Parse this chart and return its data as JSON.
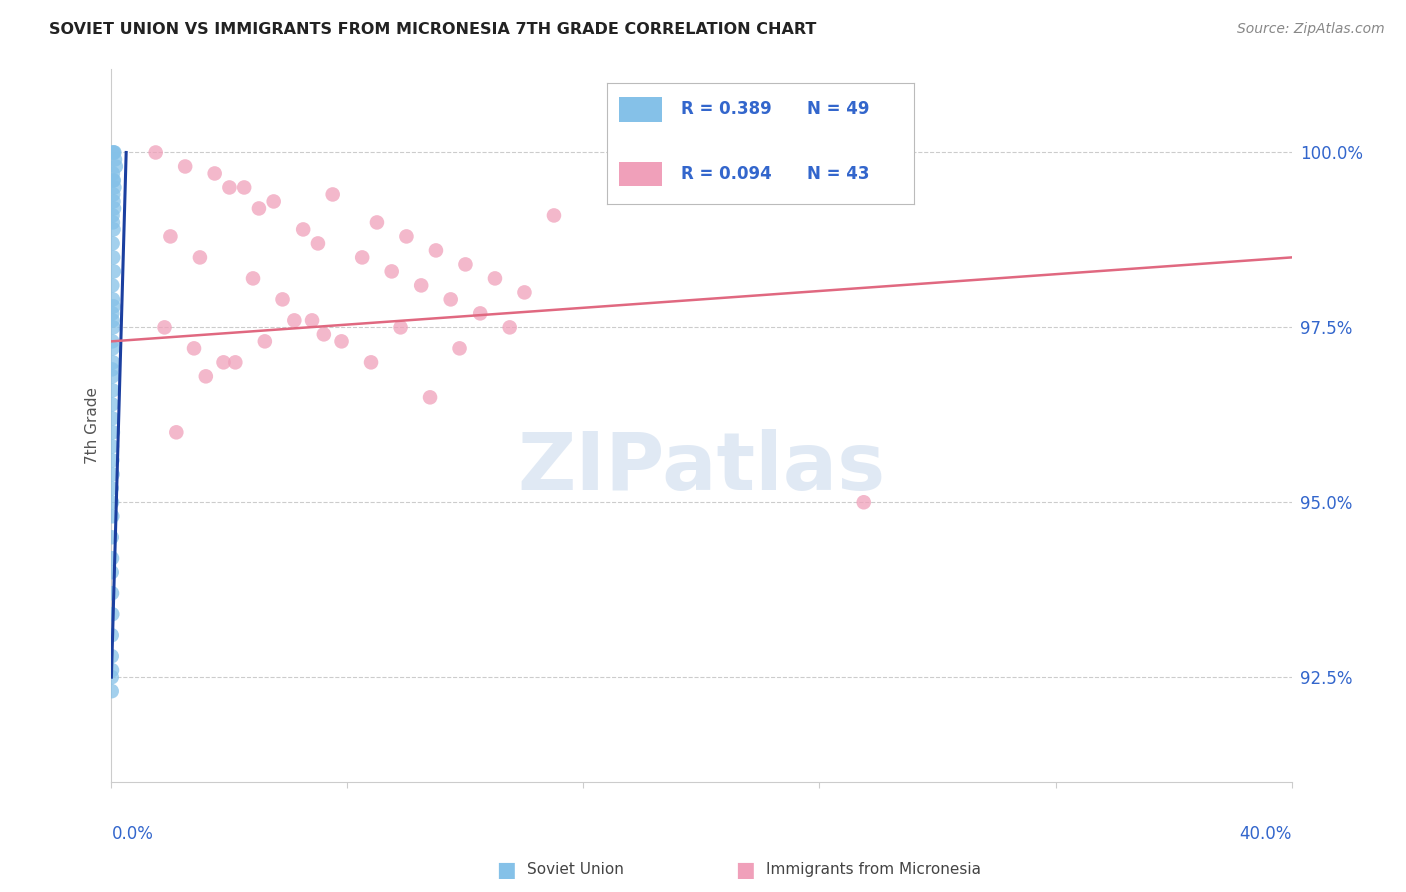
{
  "title": "SOVIET UNION VS IMMIGRANTS FROM MICRONESIA 7TH GRADE CORRELATION CHART",
  "source": "Source: ZipAtlas.com",
  "ylabel": "7th Grade",
  "y_tick_values": [
    92.5,
    95.0,
    97.5,
    100.0
  ],
  "xlim": [
    0.0,
    40.0
  ],
  "ylim": [
    91.0,
    101.2
  ],
  "legend_r_blue": "R = 0.389",
  "legend_n_blue": "N = 49",
  "legend_r_pink": "R = 0.094",
  "legend_n_pink": "N = 43",
  "blue_color": "#85C1E8",
  "pink_color": "#F0A0BA",
  "blue_line_color": "#1B3FA0",
  "pink_line_color": "#E06880",
  "watermark_color": "#C8D8EC",
  "label_color": "#3366CC",
  "grid_color": "#CCCCCC",
  "blue_x": [
    0.05,
    0.08,
    0.1,
    0.12,
    0.15,
    0.05,
    0.06,
    0.08,
    0.1,
    0.06,
    0.07,
    0.09,
    0.04,
    0.05,
    0.07,
    0.04,
    0.06,
    0.08,
    0.03,
    0.05,
    0.07,
    0.03,
    0.04,
    0.06,
    0.03,
    0.04,
    0.05,
    0.02,
    0.03,
    0.04,
    0.02,
    0.03,
    0.05,
    0.02,
    0.03,
    0.04,
    0.01,
    0.02,
    0.03,
    0.01,
    0.02,
    0.01,
    0.02,
    0.03,
    0.01,
    0.01,
    0.02,
    0.01,
    0.01
  ],
  "blue_y": [
    100.0,
    100.0,
    100.0,
    99.9,
    99.8,
    99.7,
    99.6,
    99.6,
    99.5,
    99.4,
    99.3,
    99.2,
    99.1,
    99.0,
    98.9,
    98.7,
    98.5,
    98.3,
    98.1,
    97.9,
    97.8,
    97.7,
    97.6,
    97.5,
    97.3,
    97.2,
    97.0,
    96.9,
    96.8,
    96.6,
    96.4,
    96.2,
    96.0,
    95.8,
    95.6,
    95.4,
    95.2,
    95.0,
    94.8,
    94.5,
    94.2,
    94.0,
    93.7,
    93.4,
    93.1,
    92.8,
    92.6,
    92.5,
    92.3
  ],
  "pink_x": [
    1.5,
    2.5,
    3.5,
    4.5,
    5.5,
    7.5,
    9.0,
    10.0,
    11.0,
    12.0,
    13.0,
    14.0,
    15.0,
    4.0,
    5.0,
    6.5,
    7.0,
    8.5,
    9.5,
    10.5,
    11.5,
    12.5,
    13.5,
    2.0,
    3.0,
    4.8,
    5.8,
    6.8,
    7.8,
    8.8,
    9.8,
    10.8,
    11.8,
    1.8,
    2.8,
    3.8,
    25.5,
    2.2,
    3.2,
    4.2,
    5.2,
    6.2,
    7.2
  ],
  "pink_y": [
    100.0,
    99.8,
    99.7,
    99.5,
    99.3,
    99.4,
    99.0,
    98.8,
    98.6,
    98.4,
    98.2,
    98.0,
    99.1,
    99.5,
    99.2,
    98.9,
    98.7,
    98.5,
    98.3,
    98.1,
    97.9,
    97.7,
    97.5,
    98.8,
    98.5,
    98.2,
    97.9,
    97.6,
    97.3,
    97.0,
    97.5,
    96.5,
    97.2,
    97.5,
    97.2,
    97.0,
    95.0,
    96.0,
    96.8,
    97.0,
    97.3,
    97.6,
    97.4
  ],
  "blue_line_x0": 0.0,
  "blue_line_x1": 0.5,
  "blue_line_y0": 92.5,
  "blue_line_y1": 100.0,
  "pink_line_x0": 0.0,
  "pink_line_x1": 40.0,
  "pink_line_y0": 97.3,
  "pink_line_y1": 98.5
}
